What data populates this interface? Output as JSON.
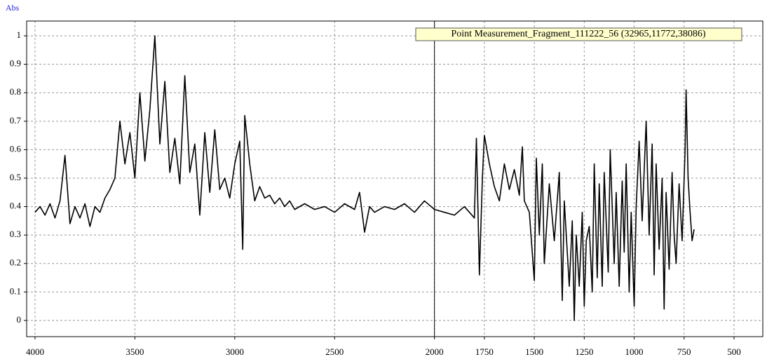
{
  "chart_data": {
    "type": "line",
    "title": "Abs",
    "annotation": "Point Measurement_Fragment_111222_56 (32965,11772,38086)",
    "xlim": [
      4042,
      356
    ],
    "ylim": [
      -0.057,
      1.052
    ],
    "xticks": [
      4000,
      3500,
      3000,
      2500,
      2000,
      1750,
      1500,
      1250,
      1000,
      750,
      500
    ],
    "yticks": [
      0,
      0.1,
      0.2,
      0.3,
      0.4,
      0.5,
      0.6,
      0.7,
      0.8,
      0.9,
      1
    ],
    "grid": true,
    "cursor_x": 2000,
    "x": [
      4000,
      3975,
      3950,
      3925,
      3900,
      3875,
      3850,
      3825,
      3800,
      3775,
      3750,
      3725,
      3700,
      3675,
      3650,
      3625,
      3600,
      3575,
      3550,
      3525,
      3500,
      3475,
      3450,
      3425,
      3400,
      3375,
      3350,
      3325,
      3300,
      3275,
      3250,
      3225,
      3200,
      3175,
      3150,
      3125,
      3100,
      3075,
      3050,
      3025,
      3000,
      2975,
      2960,
      2950,
      2925,
      2900,
      2875,
      2850,
      2825,
      2800,
      2775,
      2750,
      2725,
      2700,
      2650,
      2600,
      2550,
      2500,
      2450,
      2400,
      2375,
      2350,
      2325,
      2300,
      2250,
      2200,
      2150,
      2100,
      2050,
      2000,
      1950,
      1900,
      1850,
      1825,
      1800,
      1790,
      1775,
      1760,
      1750,
      1725,
      1700,
      1675,
      1650,
      1625,
      1600,
      1575,
      1560,
      1550,
      1525,
      1500,
      1490,
      1475,
      1460,
      1450,
      1425,
      1400,
      1375,
      1360,
      1350,
      1325,
      1310,
      1300,
      1290,
      1275,
      1260,
      1250,
      1240,
      1225,
      1210,
      1200,
      1185,
      1175,
      1160,
      1150,
      1130,
      1120,
      1100,
      1090,
      1075,
      1060,
      1050,
      1040,
      1025,
      1015,
      1000,
      990,
      975,
      960,
      940,
      925,
      910,
      900,
      890,
      875,
      860,
      850,
      840,
      825,
      810,
      800,
      790,
      775,
      760,
      745,
      740,
      730,
      720,
      710,
      700
    ],
    "series": [
      {
        "color": "#000000",
        "values": [
          0.38,
          0.4,
          0.37,
          0.41,
          0.36,
          0.42,
          0.58,
          0.34,
          0.4,
          0.36,
          0.41,
          0.33,
          0.4,
          0.38,
          0.43,
          0.46,
          0.5,
          0.7,
          0.55,
          0.66,
          0.5,
          0.8,
          0.56,
          0.74,
          1.0,
          0.62,
          0.84,
          0.52,
          0.64,
          0.48,
          0.86,
          0.52,
          0.62,
          0.37,
          0.66,
          0.45,
          0.67,
          0.46,
          0.5,
          0.43,
          0.55,
          0.63,
          0.25,
          0.72,
          0.55,
          0.42,
          0.47,
          0.43,
          0.44,
          0.41,
          0.43,
          0.4,
          0.42,
          0.39,
          0.41,
          0.39,
          0.4,
          0.38,
          0.41,
          0.39,
          0.45,
          0.31,
          0.4,
          0.38,
          0.4,
          0.39,
          0.41,
          0.38,
          0.42,
          0.39,
          0.38,
          0.37,
          0.4,
          0.38,
          0.36,
          0.64,
          0.16,
          0.5,
          0.65,
          0.55,
          0.47,
          0.42,
          0.55,
          0.46,
          0.53,
          0.44,
          0.61,
          0.42,
          0.38,
          0.14,
          0.57,
          0.3,
          0.55,
          0.2,
          0.48,
          0.28,
          0.52,
          0.07,
          0.42,
          0.12,
          0.35,
          0.0,
          0.3,
          0.12,
          0.38,
          0.05,
          0.28,
          0.33,
          0.1,
          0.55,
          0.15,
          0.48,
          0.12,
          0.52,
          0.17,
          0.6,
          0.2,
          0.45,
          0.12,
          0.49,
          0.24,
          0.55,
          0.1,
          0.38,
          0.05,
          0.4,
          0.63,
          0.35,
          0.7,
          0.3,
          0.62,
          0.16,
          0.55,
          0.25,
          0.5,
          0.04,
          0.45,
          0.18,
          0.52,
          0.3,
          0.2,
          0.48,
          0.28,
          0.6,
          0.81,
          0.5,
          0.38,
          0.28,
          0.32
        ]
      }
    ]
  }
}
